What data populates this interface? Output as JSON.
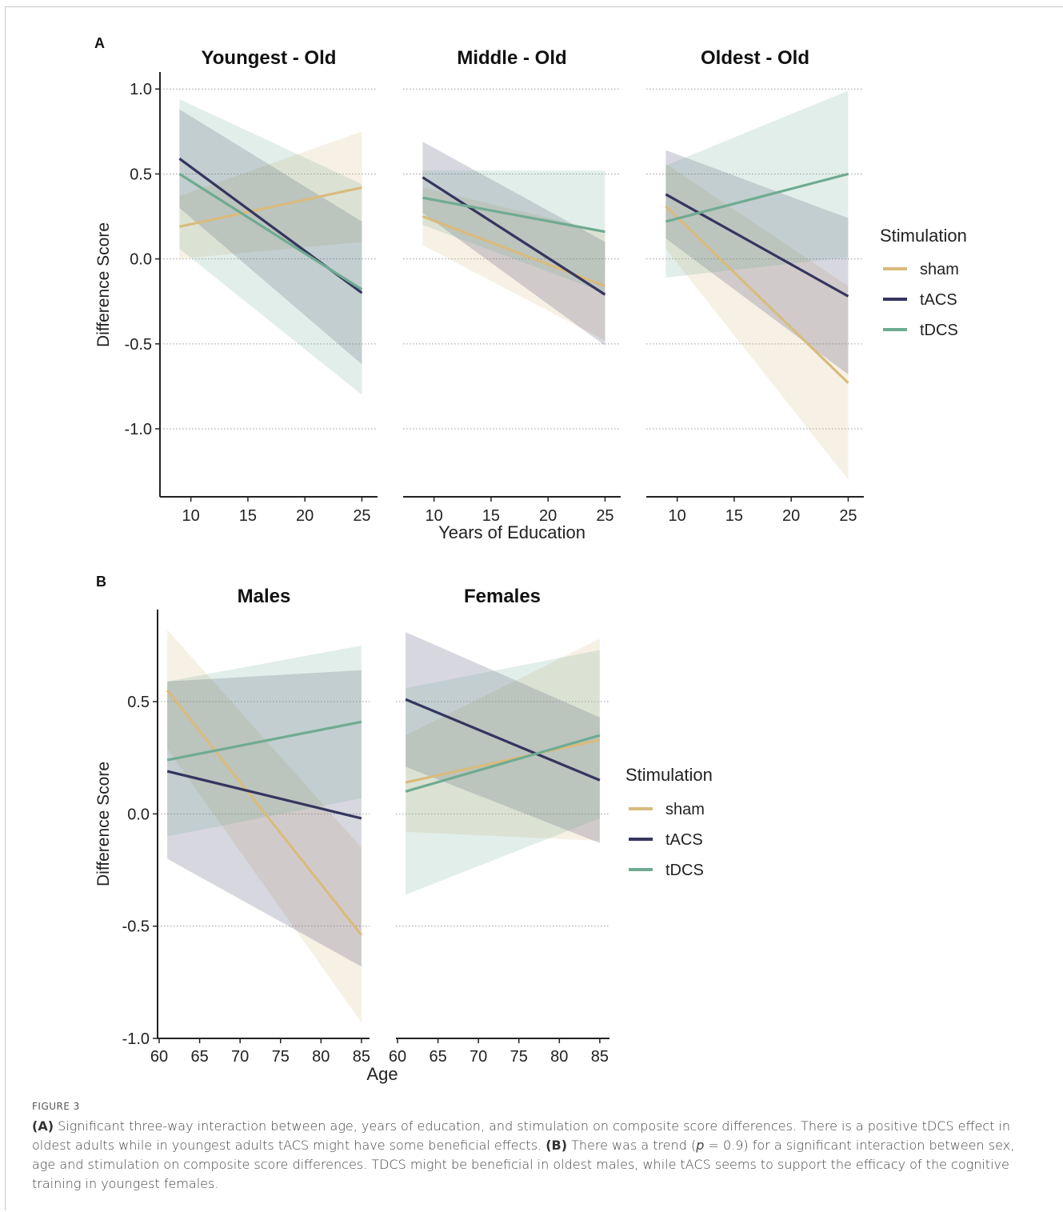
{
  "colors": {
    "sham": "#d9bb7d",
    "tACS": "#35355f",
    "tDCS": "#6fab91"
  },
  "chart_data": [
    {
      "type": "line",
      "panel_label": "A",
      "xlabel": "Years of Education",
      "ylabel": "Difference Score",
      "xlim": [
        8.2,
        25.6
      ],
      "ylim": [
        -1.4,
        1.1
      ],
      "xticks": [
        10,
        15,
        20,
        25
      ],
      "xtick_labels": [
        "10",
        "15",
        "20",
        "25"
      ],
      "yticks": [
        1.0,
        0.5,
        0.0,
        -0.5,
        -1.0
      ],
      "ytick_labels": [
        "1.0",
        "0.5",
        "0.0",
        "-0.5",
        "-1.0"
      ],
      "grid": "horizontal dotted",
      "legend": {
        "title": "Stimulation",
        "position": "right",
        "entries": [
          "sham",
          "tACS",
          "tDCS"
        ]
      },
      "facets": [
        {
          "title": "Youngest - Old",
          "series": [
            {
              "name": "sham",
              "x": [
                9,
                25
              ],
              "y": [
                0.19,
                0.42
              ],
              "lower": [
                0.0,
                0.1
              ],
              "upper": [
                0.37,
                0.75
              ]
            },
            {
              "name": "tACS",
              "x": [
                9,
                25
              ],
              "y": [
                0.59,
                -0.2
              ],
              "lower": [
                0.3,
                -0.62
              ],
              "upper": [
                0.88,
                0.22
              ]
            },
            {
              "name": "tDCS",
              "x": [
                9,
                25
              ],
              "y": [
                0.5,
                -0.18
              ],
              "lower": [
                0.06,
                -0.8
              ],
              "upper": [
                0.94,
                0.44
              ]
            }
          ]
        },
        {
          "title": "Middle - Old",
          "series": [
            {
              "name": "sham",
              "x": [
                9,
                25
              ],
              "y": [
                0.25,
                -0.16
              ],
              "lower": [
                0.08,
                -0.48
              ],
              "upper": [
                0.42,
                0.16
              ]
            },
            {
              "name": "tACS",
              "x": [
                9,
                25
              ],
              "y": [
                0.48,
                -0.21
              ],
              "lower": [
                0.27,
                -0.51
              ],
              "upper": [
                0.69,
                0.1
              ]
            },
            {
              "name": "tDCS",
              "x": [
                9,
                25
              ],
              "y": [
                0.36,
                0.16
              ],
              "lower": [
                0.2,
                -0.2
              ],
              "upper": [
                0.52,
                0.52
              ]
            }
          ]
        },
        {
          "title": "Oldest - Old",
          "series": [
            {
              "name": "sham",
              "x": [
                9,
                25
              ],
              "y": [
                0.31,
                -0.73
              ],
              "lower": [
                0.06,
                -1.3
              ],
              "upper": [
                0.56,
                -0.16
              ]
            },
            {
              "name": "tACS",
              "x": [
                9,
                25
              ],
              "y": [
                0.38,
                -0.22
              ],
              "lower": [
                0.12,
                -0.68
              ],
              "upper": [
                0.64,
                0.24
              ]
            },
            {
              "name": "tDCS",
              "x": [
                9,
                25
              ],
              "y": [
                0.22,
                0.5
              ],
              "lower": [
                -0.11,
                0.01
              ],
              "upper": [
                0.55,
                0.99
              ]
            }
          ]
        }
      ]
    },
    {
      "type": "line",
      "panel_label": "B",
      "xlabel": "Age",
      "ylabel": "Difference Score",
      "xlim": [
        59.9,
        86.0
      ],
      "ylim": [
        -1.0,
        0.91
      ],
      "xticks": [
        60,
        65,
        70,
        75,
        80,
        85
      ],
      "xtick_labels": [
        "60",
        "65",
        "70",
        "75",
        "80",
        "85"
      ],
      "yticks": [
        0.5,
        0.0,
        -0.5,
        -1.0
      ],
      "ytick_labels": [
        "0.5",
        "0.0",
        "-0.5",
        "-1.0"
      ],
      "grid": "horizontal dotted",
      "legend": {
        "title": "Stimulation",
        "position": "right",
        "entries": [
          "sham",
          "tACS",
          "tDCS"
        ]
      },
      "facets": [
        {
          "title": "Males",
          "series": [
            {
              "name": "sham",
              "x": [
                61,
                85
              ],
              "y": [
                0.55,
                -0.54
              ],
              "lower": [
                0.29,
                -0.93
              ],
              "upper": [
                0.82,
                -0.15
              ]
            },
            {
              "name": "tACS",
              "x": [
                61,
                85
              ],
              "y": [
                0.19,
                -0.02
              ],
              "lower": [
                -0.2,
                -0.68
              ],
              "upper": [
                0.59,
                0.64
              ]
            },
            {
              "name": "tDCS",
              "x": [
                61,
                85
              ],
              "y": [
                0.24,
                0.41
              ],
              "lower": [
                -0.1,
                0.07
              ],
              "upper": [
                0.59,
                0.75
              ]
            }
          ]
        },
        {
          "title": "Females",
          "series": [
            {
              "name": "sham",
              "x": [
                61,
                85
              ],
              "y": [
                0.14,
                0.33
              ],
              "lower": [
                -0.08,
                -0.12
              ],
              "upper": [
                0.35,
                0.78
              ]
            },
            {
              "name": "tACS",
              "x": [
                61,
                85
              ],
              "y": [
                0.51,
                0.15
              ],
              "lower": [
                0.21,
                -0.13
              ],
              "upper": [
                0.81,
                0.43
              ]
            },
            {
              "name": "tDCS",
              "x": [
                61,
                85
              ],
              "y": [
                0.1,
                0.35
              ],
              "lower": [
                -0.36,
                -0.02
              ],
              "upper": [
                0.56,
                0.73
              ]
            }
          ]
        }
      ]
    }
  ],
  "caption": {
    "figure_label": "FIGURE 3",
    "a_label": "(A)",
    "a_text": " Significant three-way interaction between age, years of education, and stimulation on composite score differences. There is a positive tDCS effect in oldest adults while in youngest adults tACS might have some beneficial effects. ",
    "b_label": "(B)",
    "b_text_1": " There was a trend (",
    "p_symbol": "p",
    "b_text_2": " = 0.9) for a significant interaction between sex, age and stimulation on composite score differences. TDCS might be beneficial in oldest males, while tACS seems to support the efficacy of the cognitive training in youngest females."
  }
}
